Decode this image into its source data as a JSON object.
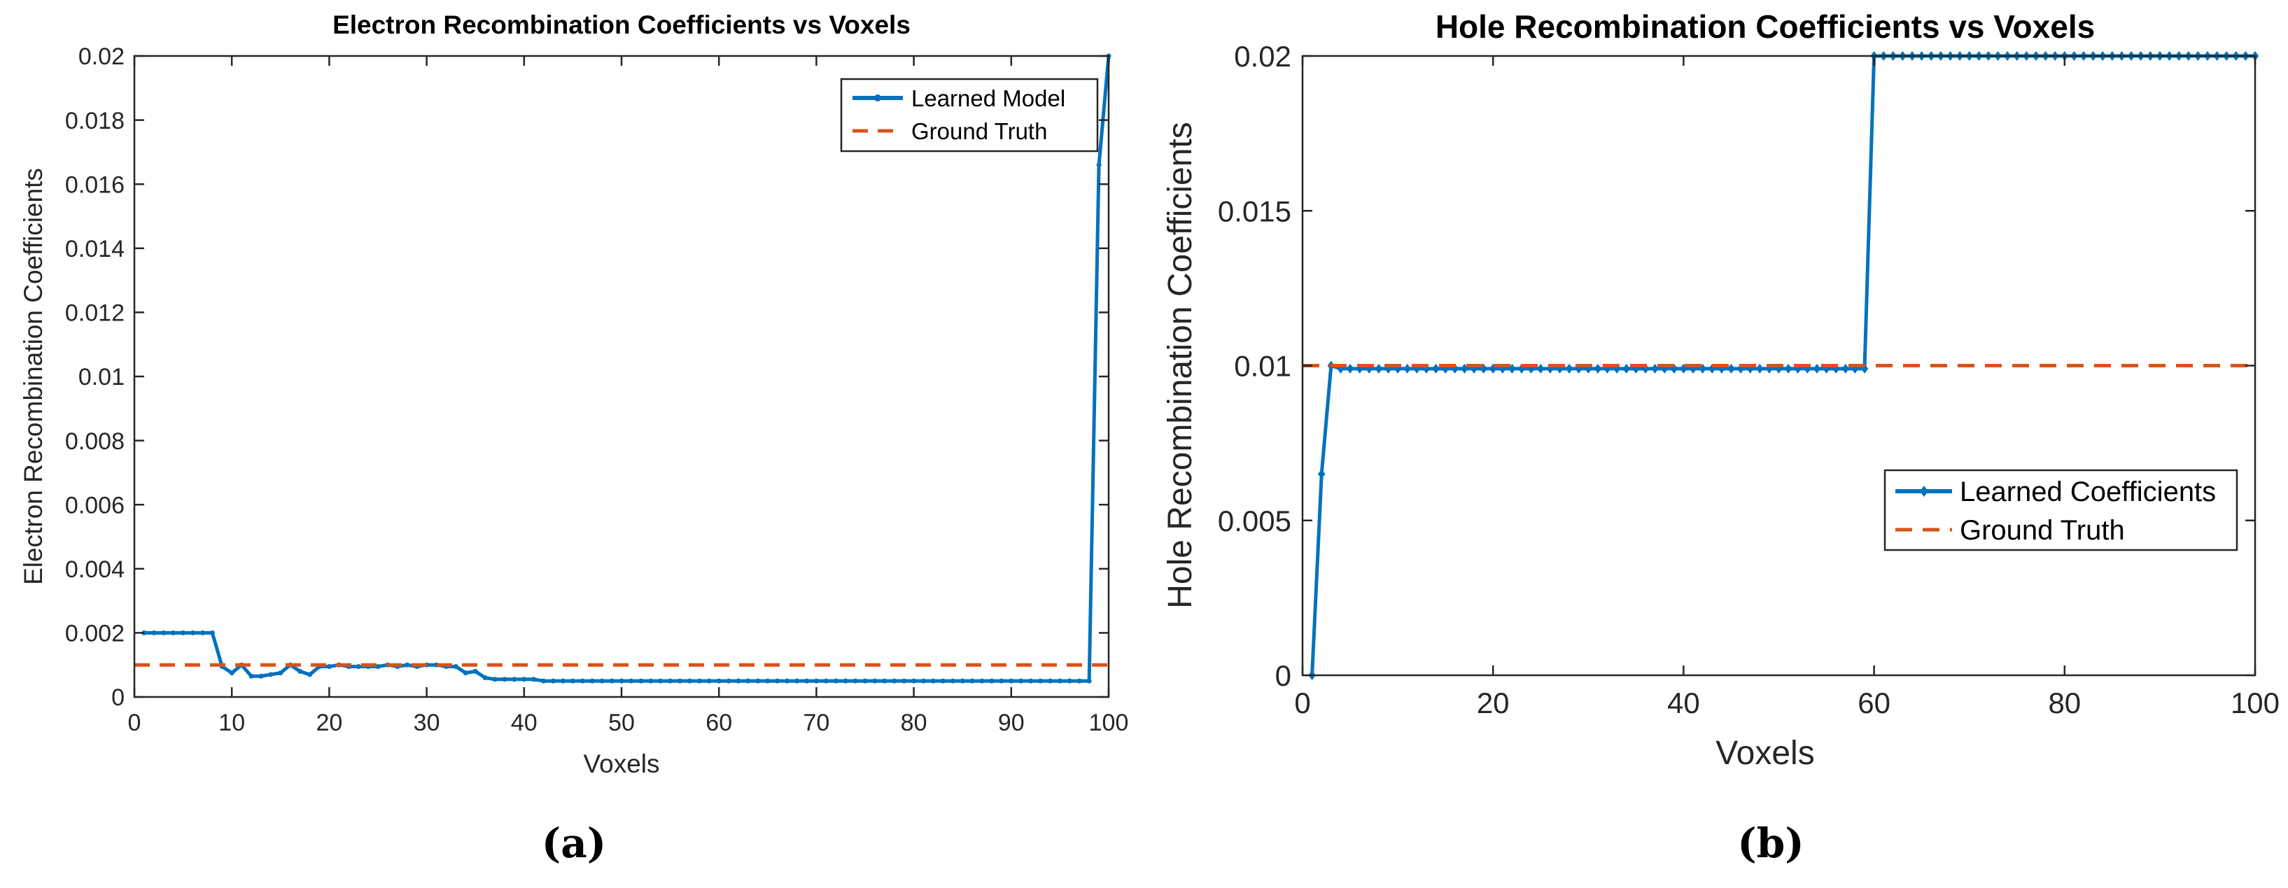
{
  "chart_data": [
    {
      "type": "line",
      "title": "Electron Recombination Coefficients vs Voxels",
      "xlabel": "Voxels",
      "ylabel": "Electron Recombination Coefficients",
      "xlim": [
        0,
        100
      ],
      "ylim": [
        0,
        0.02
      ],
      "xticks": [
        0,
        10,
        20,
        30,
        40,
        50,
        60,
        70,
        80,
        90,
        100
      ],
      "xtick_labels": [
        "0",
        "10",
        "20",
        "30",
        "40",
        "50",
        "60",
        "70",
        "80",
        "90",
        "100"
      ],
      "yticks": [
        0,
        0.002,
        0.004,
        0.006,
        0.008,
        0.01,
        0.012,
        0.014,
        0.016,
        0.018,
        0.02
      ],
      "ytick_labels": [
        "0",
        "0.002",
        "0.004",
        "0.006",
        "0.008",
        "0.01",
        "0.012",
        "0.014",
        "0.016",
        "0.018",
        "0.02"
      ],
      "legend_position": "top-right",
      "caption": "(a)",
      "series": [
        {
          "name": "Learned Model",
          "color": "#0072BD",
          "style": "solid",
          "marker": "point",
          "x": [
            1,
            2,
            3,
            4,
            5,
            6,
            7,
            8,
            9,
            10,
            11,
            12,
            13,
            14,
            15,
            16,
            17,
            18,
            19,
            20,
            21,
            22,
            23,
            24,
            25,
            26,
            27,
            28,
            29,
            30,
            31,
            32,
            33,
            34,
            35,
            36,
            37,
            38,
            39,
            40,
            41,
            42,
            43,
            44,
            45,
            46,
            47,
            48,
            49,
            50,
            51,
            52,
            53,
            54,
            55,
            56,
            57,
            58,
            59,
            60,
            61,
            62,
            63,
            64,
            65,
            66,
            67,
            68,
            69,
            70,
            71,
            72,
            73,
            74,
            75,
            76,
            77,
            78,
            79,
            80,
            81,
            82,
            83,
            84,
            85,
            86,
            87,
            88,
            89,
            90,
            91,
            92,
            93,
            94,
            95,
            96,
            97,
            98,
            99,
            100
          ],
          "values": [
            0.002,
            0.002,
            0.002,
            0.002,
            0.002,
            0.002,
            0.002,
            0.002,
            0.00095,
            0.00075,
            0.001,
            0.00065,
            0.00065,
            0.0007,
            0.00075,
            0.001,
            0.0008,
            0.0007,
            0.00095,
            0.00095,
            0.001,
            0.00095,
            0.00095,
            0.00095,
            0.00095,
            0.001,
            0.00095,
            0.001,
            0.00095,
            0.001,
            0.001,
            0.00095,
            0.00095,
            0.00075,
            0.0008,
            0.0006,
            0.00055,
            0.00055,
            0.00055,
            0.00055,
            0.00055,
            0.0005,
            0.0005,
            0.0005,
            0.0005,
            0.0005,
            0.0005,
            0.0005,
            0.0005,
            0.0005,
            0.0005,
            0.0005,
            0.0005,
            0.0005,
            0.0005,
            0.0005,
            0.0005,
            0.0005,
            0.0005,
            0.0005,
            0.0005,
            0.0005,
            0.0005,
            0.0005,
            0.0005,
            0.0005,
            0.0005,
            0.0005,
            0.0005,
            0.0005,
            0.0005,
            0.0005,
            0.0005,
            0.0005,
            0.0005,
            0.0005,
            0.0005,
            0.0005,
            0.0005,
            0.0005,
            0.0005,
            0.0005,
            0.0005,
            0.0005,
            0.0005,
            0.0005,
            0.0005,
            0.0005,
            0.0005,
            0.0005,
            0.0005,
            0.0005,
            0.0005,
            0.0005,
            0.0005,
            0.0005,
            0.0005,
            0.0005,
            0.0166,
            0.02
          ]
        },
        {
          "name": "Ground Truth",
          "color": "#D95319",
          "style": "dashed",
          "x": [
            0,
            100
          ],
          "values": [
            0.001,
            0.001
          ]
        }
      ]
    },
    {
      "type": "line",
      "title": "Hole Recombination Coefficients vs Voxels",
      "xlabel": "Voxels",
      "ylabel": "Hole Recombination Coefficients",
      "xlim": [
        0,
        100
      ],
      "ylim": [
        0,
        0.02
      ],
      "xticks": [
        0,
        20,
        40,
        60,
        80,
        100
      ],
      "xtick_labels": [
        "0",
        "20",
        "40",
        "60",
        "80",
        "100"
      ],
      "yticks": [
        0,
        0.005,
        0.01,
        0.015,
        0.02
      ],
      "ytick_labels": [
        "0",
        "0.005",
        "0.01",
        "0.015",
        "0.02"
      ],
      "legend_position": "center-right",
      "caption": "(b)",
      "series": [
        {
          "name": "Learned Coefficients",
          "color": "#0072BD",
          "style": "solid",
          "marker": "diamond",
          "x": [
            1,
            2,
            3,
            4,
            5,
            6,
            7,
            8,
            9,
            10,
            11,
            12,
            13,
            14,
            15,
            16,
            17,
            18,
            19,
            20,
            21,
            22,
            23,
            24,
            25,
            26,
            27,
            28,
            29,
            30,
            31,
            32,
            33,
            34,
            35,
            36,
            37,
            38,
            39,
            40,
            41,
            42,
            43,
            44,
            45,
            46,
            47,
            48,
            49,
            50,
            51,
            52,
            53,
            54,
            55,
            56,
            57,
            58,
            59,
            60,
            61,
            62,
            63,
            64,
            65,
            66,
            67,
            68,
            69,
            70,
            71,
            72,
            73,
            74,
            75,
            76,
            77,
            78,
            79,
            80,
            81,
            82,
            83,
            84,
            85,
            86,
            87,
            88,
            89,
            90,
            91,
            92,
            93,
            94,
            95,
            96,
            97,
            98,
            99,
            100
          ],
          "values": [
            0,
            0.0065,
            0.01,
            0.0099,
            0.0099,
            0.0099,
            0.0099,
            0.0099,
            0.0099,
            0.0099,
            0.0099,
            0.0099,
            0.0099,
            0.0099,
            0.0099,
            0.0099,
            0.0099,
            0.0099,
            0.0099,
            0.0099,
            0.0099,
            0.0099,
            0.0099,
            0.0099,
            0.0099,
            0.0099,
            0.0099,
            0.0099,
            0.0099,
            0.0099,
            0.0099,
            0.0099,
            0.0099,
            0.0099,
            0.0099,
            0.0099,
            0.0099,
            0.0099,
            0.0099,
            0.0099,
            0.0099,
            0.0099,
            0.0099,
            0.0099,
            0.0099,
            0.0099,
            0.0099,
            0.0099,
            0.0099,
            0.0099,
            0.0099,
            0.0099,
            0.0099,
            0.0099,
            0.0099,
            0.0099,
            0.0099,
            0.0099,
            0.0099,
            0.02,
            0.02,
            0.02,
            0.02,
            0.02,
            0.02,
            0.02,
            0.02,
            0.02,
            0.02,
            0.02,
            0.02,
            0.02,
            0.02,
            0.02,
            0.02,
            0.02,
            0.02,
            0.02,
            0.02,
            0.02,
            0.02,
            0.02,
            0.02,
            0.02,
            0.02,
            0.02,
            0.02,
            0.02,
            0.02,
            0.02,
            0.02,
            0.02,
            0.02,
            0.02,
            0.02,
            0.02,
            0.02,
            0.02,
            0.02,
            0.02
          ]
        },
        {
          "name": "Ground Truth",
          "color": "#D95319",
          "style": "dashed",
          "x": [
            0,
            100
          ],
          "values": [
            0.01,
            0.01
          ]
        }
      ]
    }
  ]
}
